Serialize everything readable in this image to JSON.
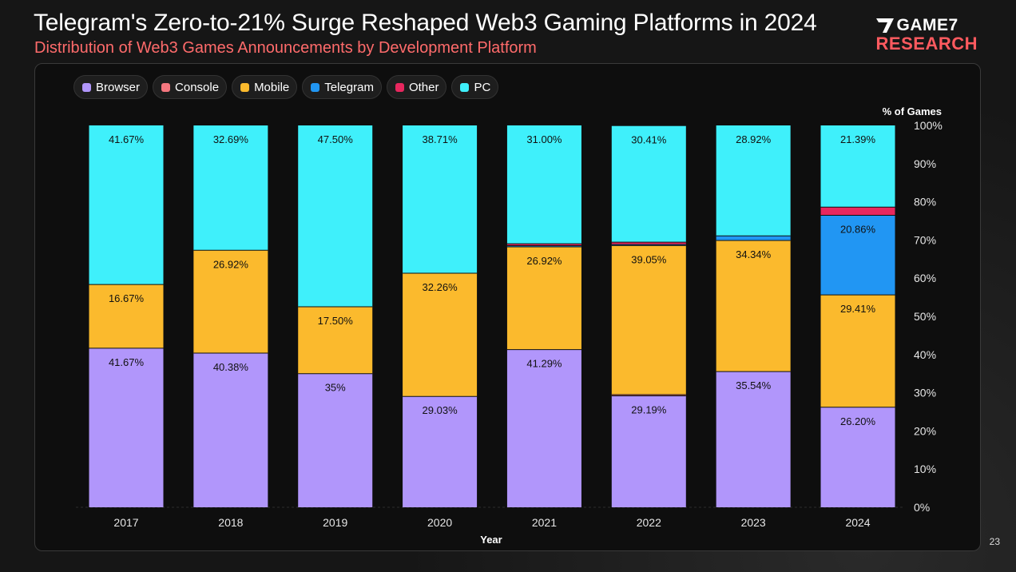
{
  "header": {
    "title": "Telegram's Zero-to-21% Surge Reshaped Web3 Gaming Platforms in 2024",
    "subtitle": "Distribution of Web3 Games Announcements by Development Platform"
  },
  "logo": {
    "line1": "GAME7",
    "line2": "RESEARCH"
  },
  "page_number": "23",
  "chart_data": {
    "type": "bar",
    "stacked": true,
    "title": "Telegram's Zero-to-21% Surge Reshaped Web3 Gaming Platforms in 2024",
    "subtitle": "Distribution of Web3 Games Announcements by Development Platform",
    "xlabel": "Year",
    "ylabel": "% of Games",
    "ylim": [
      0,
      100
    ],
    "yticks": [
      "0%",
      "10%",
      "20%",
      "30%",
      "40%",
      "50%",
      "60%",
      "70%",
      "80%",
      "90%",
      "100%"
    ],
    "categories": [
      "2017",
      "2018",
      "2019",
      "2020",
      "2021",
      "2022",
      "2023",
      "2024"
    ],
    "series": [
      {
        "name": "Browser",
        "color": "#b196fb",
        "values": [
          41.67,
          40.38,
          35,
          29.03,
          41.29,
          29.19,
          35.54,
          26.2
        ],
        "labels": [
          "41.67%",
          "40.38%",
          "35%",
          "29.03%",
          "41.29%",
          "29.19%",
          "35.54%",
          "26.20%"
        ]
      },
      {
        "name": "Console",
        "color": "#f5777f",
        "values": [
          0,
          0,
          0,
          0,
          0,
          0.3,
          0,
          0
        ],
        "labels": [
          "",
          "",
          "",
          "",
          "",
          "",
          "",
          ""
        ]
      },
      {
        "name": "Mobile",
        "color": "#fbba2d",
        "values": [
          16.67,
          26.92,
          17.5,
          32.26,
          26.92,
          39.05,
          34.34,
          29.41
        ],
        "labels": [
          "16.67%",
          "26.92%",
          "17.50%",
          "32.26%",
          "26.92%",
          "39.05%",
          "34.34%",
          "29.41%"
        ]
      },
      {
        "name": "Telegram",
        "color": "#2196f3",
        "values": [
          0,
          0,
          0,
          0,
          0.3,
          0.3,
          1.2,
          20.86
        ],
        "labels": [
          "",
          "",
          "",
          "",
          "",
          "",
          "",
          "20.86%"
        ]
      },
      {
        "name": "Other",
        "color": "#e8275e",
        "values": [
          0,
          0,
          0,
          0,
          0.5,
          0.6,
          0,
          2.14
        ],
        "labels": [
          "",
          "",
          "",
          "",
          "",
          "",
          "",
          ""
        ]
      },
      {
        "name": "PC",
        "color": "#3ff0fb",
        "values": [
          41.67,
          32.69,
          47.5,
          38.71,
          31.0,
          30.41,
          28.92,
          21.39
        ],
        "labels": [
          "41.67%",
          "32.69%",
          "47.50%",
          "38.71%",
          "31.00%",
          "30.41%",
          "28.92%",
          "21.39%"
        ]
      }
    ]
  }
}
